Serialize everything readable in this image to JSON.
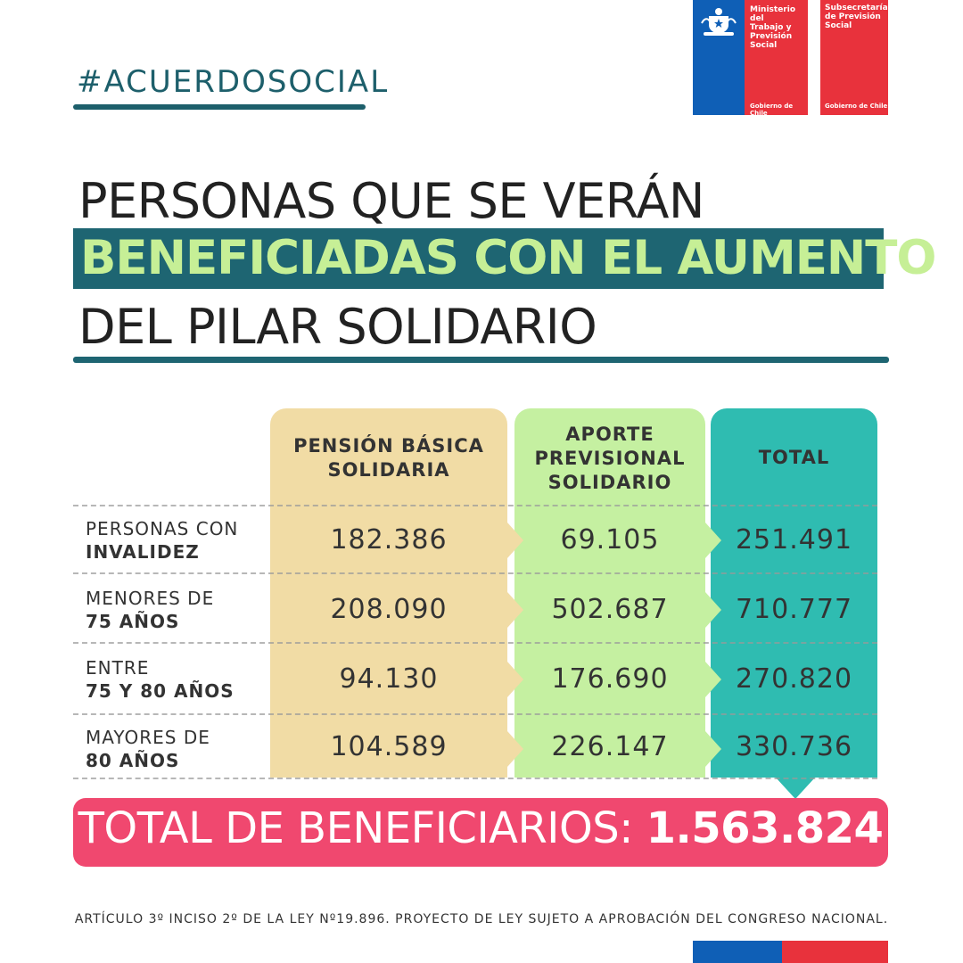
{
  "hashtag": "#ACUERDOSOCIAL",
  "logos": {
    "ministerio": "Ministerio del Trabajo y Previsión Social",
    "ministerio_lines": [
      "Ministerio del",
      "Trabajo y",
      "Previsión",
      "Social"
    ],
    "subsecretaria_lines": [
      "Subsecretaría",
      "de Previsión",
      "Social"
    ],
    "gobierno": "Gobierno de Chile"
  },
  "title": {
    "line1": "PERSONAS QUE SE VERÁN",
    "line2": "BENEFICIADAS CON EL AUMENTO",
    "line3": "DEL PILAR SOLIDARIO"
  },
  "table": {
    "headers": {
      "pbs_l1": "PENSIÓN BÁSICA",
      "pbs_l2": "SOLIDARIA",
      "aps_l1": "APORTE",
      "aps_l2": "PREVISIONAL",
      "aps_l3": "SOLIDARIO",
      "total": "TOTAL"
    },
    "rows": [
      {
        "label_l1": "PERSONAS CON",
        "label_l2": "INVALIDEZ",
        "pbs": "182.386",
        "aps": "69.105",
        "total": "251.491"
      },
      {
        "label_l1": "MENORES DE",
        "label_l2": "75 AÑOS",
        "pbs": "208.090",
        "aps": "502.687",
        "total": "710.777"
      },
      {
        "label_l1": "ENTRE",
        "label_l2": "75 Y 80 AÑOS",
        "pbs": "94.130",
        "aps": "176.690",
        "total": "270.820"
      },
      {
        "label_l1": "MAYORES DE",
        "label_l2": "80 AÑOS",
        "pbs": "104.589",
        "aps": "226.147",
        "total": "330.736"
      }
    ]
  },
  "total_bar": {
    "label": "TOTAL DE BENEFICIARIOS: ",
    "value": "1.563.824"
  },
  "footnote": "ARTÍCULO 3º INCISO 2º DE LA LEY Nº19.896. PROYECTO DE LEY SUJETO A APROBACIÓN DEL CONGRESO NACIONAL.",
  "colors": {
    "teal_dark": "#1e6572",
    "green_text": "#c6ef96",
    "pbs_col": "#f1dca5",
    "aps_col": "#c5f0a1",
    "total_col": "#2fbcb1",
    "pink": "#f0486f",
    "chile_blue": "#0f5fb6",
    "chile_red": "#e8323c"
  }
}
